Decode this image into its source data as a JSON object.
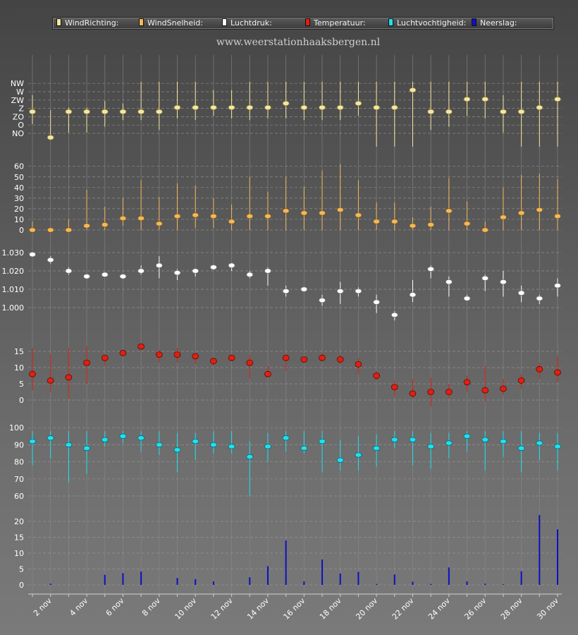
{
  "site_title": "www.weerstationhaaksbergen.nl",
  "legend": [
    {
      "label": "WindRichting:",
      "color": "#f5e6a0"
    },
    {
      "label": "WindSnelheid:",
      "color": "#f2b85a"
    },
    {
      "label": "Luchtdruk:",
      "color": "#ffffff"
    },
    {
      "label": "Temperatuur:",
      "color": "#e02010"
    },
    {
      "label": "Luchtvochtigheid:",
      "color": "#20e0f0"
    },
    {
      "label": "Neerslag:",
      "color": "#1010c0"
    }
  ],
  "chart_data": {
    "type": "multi-panel",
    "days": [
      1,
      2,
      3,
      4,
      5,
      6,
      7,
      8,
      9,
      10,
      11,
      12,
      13,
      14,
      15,
      16,
      17,
      18,
      19,
      20,
      21,
      22,
      23,
      24,
      25,
      26,
      27,
      28,
      29,
      30
    ],
    "x_tick_labels": [
      "2 nov",
      "4 nov",
      "6 nov",
      "8 nov",
      "10 nov",
      "12 nov",
      "14 nov",
      "16 nov",
      "18 nov",
      "20 nov",
      "22 nov",
      "24 nov",
      "26 nov",
      "28 nov",
      "30 nov"
    ],
    "panels": [
      {
        "name": "WindRichting",
        "color": "#f5e6a0",
        "direction_labels": [
          "NW",
          "W",
          "ZW",
          "Z",
          "ZO",
          "O",
          "NO"
        ],
        "values": [
          2.6,
          -0.5,
          2.6,
          2.6,
          2.6,
          2.6,
          2.6,
          2.6,
          3.1,
          3.1,
          3.1,
          3.1,
          3.1,
          3.1,
          3.6,
          3.1,
          3.1,
          3.1,
          3.6,
          3.1,
          3.1,
          5.2,
          2.6,
          2.6,
          4.1,
          4.1,
          2.6,
          2.6,
          3.1,
          4.1
        ],
        "low": [
          1.1,
          -0.2,
          0.1,
          0.1,
          0.8,
          1.6,
          1.6,
          0.4,
          1.8,
          1.6,
          2.1,
          1.8,
          1.6,
          1.8,
          1.8,
          1.6,
          1.6,
          1.6,
          2.1,
          -1.6,
          -1.6,
          -1.6,
          0.4,
          0.8,
          2.1,
          1.8,
          0.1,
          -1.6,
          -1.6,
          -1.6
        ],
        "high": [
          4.6,
          2.8,
          3.1,
          3.1,
          3.9,
          3.6,
          6.2,
          6.2,
          6.2,
          6.2,
          5.2,
          5.2,
          6.2,
          6.2,
          6.2,
          6.2,
          6.2,
          6.2,
          6.2,
          6.2,
          6.2,
          6.2,
          6.2,
          6.2,
          6.2,
          6.2,
          4.6,
          6.2,
          6.2,
          6.2
        ]
      },
      {
        "name": "WindSnelheid",
        "color": "#f2b85a",
        "y_ticks": [
          0,
          10,
          20,
          30,
          40,
          50,
          60
        ],
        "values": [
          0,
          0,
          0,
          4,
          5,
          11,
          11,
          6,
          13,
          14,
          13,
          8,
          13,
          13,
          18,
          16,
          16,
          19,
          14,
          8,
          8,
          4,
          5,
          18,
          6,
          0,
          12,
          16,
          19,
          13
        ],
        "low": [
          0,
          0,
          0,
          0,
          0,
          4,
          0,
          0,
          0,
          2,
          2,
          0,
          0,
          0,
          0,
          0,
          0,
          0,
          0,
          0,
          0,
          0,
          0,
          0,
          0,
          0,
          0,
          0,
          0,
          0
        ],
        "high": [
          8,
          2,
          10,
          38,
          22,
          30,
          47,
          31,
          44,
          42,
          30,
          24,
          50,
          36,
          50,
          41,
          56,
          62,
          47,
          26,
          26,
          12,
          22,
          49,
          27,
          8,
          40,
          52,
          53,
          48
        ]
      },
      {
        "name": "Luchtdruk",
        "color": "#ffffff",
        "y_ticks": [
          "1.000",
          "1.010",
          "1.020",
          "1.030"
        ],
        "values": [
          1029,
          1026,
          1020,
          1017,
          1018,
          1017,
          1020,
          1023,
          1019,
          1020,
          1022,
          1023,
          1018,
          1020,
          1009,
          1010,
          1004,
          1009,
          1009,
          1003,
          996,
          1007,
          1021,
          1014,
          1005,
          1016,
          1014,
          1008,
          1005,
          1012
        ],
        "low": [
          1028,
          1024,
          1018,
          1016,
          1017,
          1016,
          1018,
          1016,
          1015,
          1017,
          1021,
          1020,
          1016,
          1012,
          1006,
          1009,
          1001,
          1002,
          1006,
          997,
          993,
          1003,
          1016,
          1006,
          1004,
          1009,
          1006,
          1003,
          1002,
          1006
        ],
        "high": [
          1030,
          1028,
          1022,
          1018,
          1019,
          1018,
          1023,
          1028,
          1021,
          1021,
          1023,
          1024,
          1020,
          1022,
          1012,
          1011,
          1007,
          1014,
          1011,
          1007,
          998,
          1015,
          1023,
          1017,
          1007,
          1018,
          1020,
          1012,
          1007,
          1016
        ]
      },
      {
        "name": "Temperatuur",
        "color": "#e02010",
        "y_ticks": [
          0,
          5,
          10,
          15
        ],
        "values": [
          8,
          6,
          7,
          11.5,
          13,
          14.5,
          16.5,
          14,
          14,
          13.5,
          12,
          13,
          11.5,
          8,
          13,
          12.5,
          13,
          12.5,
          11,
          7.5,
          4,
          2,
          2.5,
          2.5,
          5.5,
          3,
          3.5,
          6,
          9.5,
          8.5
        ],
        "low": [
          3,
          2.5,
          0.5,
          5,
          10.5,
          14,
          15.5,
          11.5,
          11.5,
          11,
          10.5,
          12,
          6.5,
          7,
          9,
          11.5,
          12,
          11,
          8,
          6,
          1,
          0.5,
          -2,
          0.5,
          2.5,
          -0.5,
          1.5,
          3.5,
          6.5,
          5.5
        ],
        "high": [
          16,
          14,
          16,
          16.5,
          14,
          15,
          17,
          15.5,
          16,
          14,
          13,
          14,
          14,
          10.5,
          14,
          13,
          14.5,
          14,
          13,
          9,
          6,
          6.5,
          7,
          5,
          7.5,
          10.5,
          6.5,
          8,
          11.5,
          13.5
        ]
      },
      {
        "name": "Luchtvochtigheid",
        "color": "#20e0f0",
        "y_ticks": [
          60,
          70,
          80,
          90,
          100
        ],
        "values": [
          92,
          94,
          90,
          88,
          93,
          95,
          94,
          90,
          87,
          92,
          90,
          89,
          83,
          89,
          94,
          88,
          92,
          81,
          84,
          88,
          93,
          93,
          89,
          91,
          95,
          93,
          92,
          88,
          91,
          89
        ],
        "low": [
          78,
          82,
          68,
          73,
          89,
          91,
          86,
          84,
          74,
          81,
          85,
          85,
          60,
          80,
          86,
          85,
          74,
          75,
          75,
          77,
          88,
          78,
          76,
          82,
          86,
          75,
          83,
          74,
          81,
          75
        ],
        "high": [
          98,
          98,
          98,
          98,
          98,
          98,
          98,
          98,
          97,
          97,
          98,
          98,
          92,
          97,
          98,
          98,
          98,
          93,
          95,
          96,
          98,
          98,
          97,
          97,
          98,
          98,
          98,
          98,
          97,
          97
        ]
      },
      {
        "name": "Neerslag",
        "color": "#1010c0",
        "y_ticks": [
          0,
          5,
          10,
          15,
          20
        ],
        "values": [
          0,
          0.4,
          0,
          0,
          3.2,
          3.7,
          4.2,
          0,
          2.2,
          1.8,
          1.1,
          0,
          2.4,
          5.9,
          14,
          1.1,
          8,
          3.6,
          4.1,
          0.3,
          3.3,
          1,
          0.3,
          5.5,
          1.1,
          0.4,
          0.2,
          4.3,
          22,
          17.5
        ]
      }
    ]
  }
}
